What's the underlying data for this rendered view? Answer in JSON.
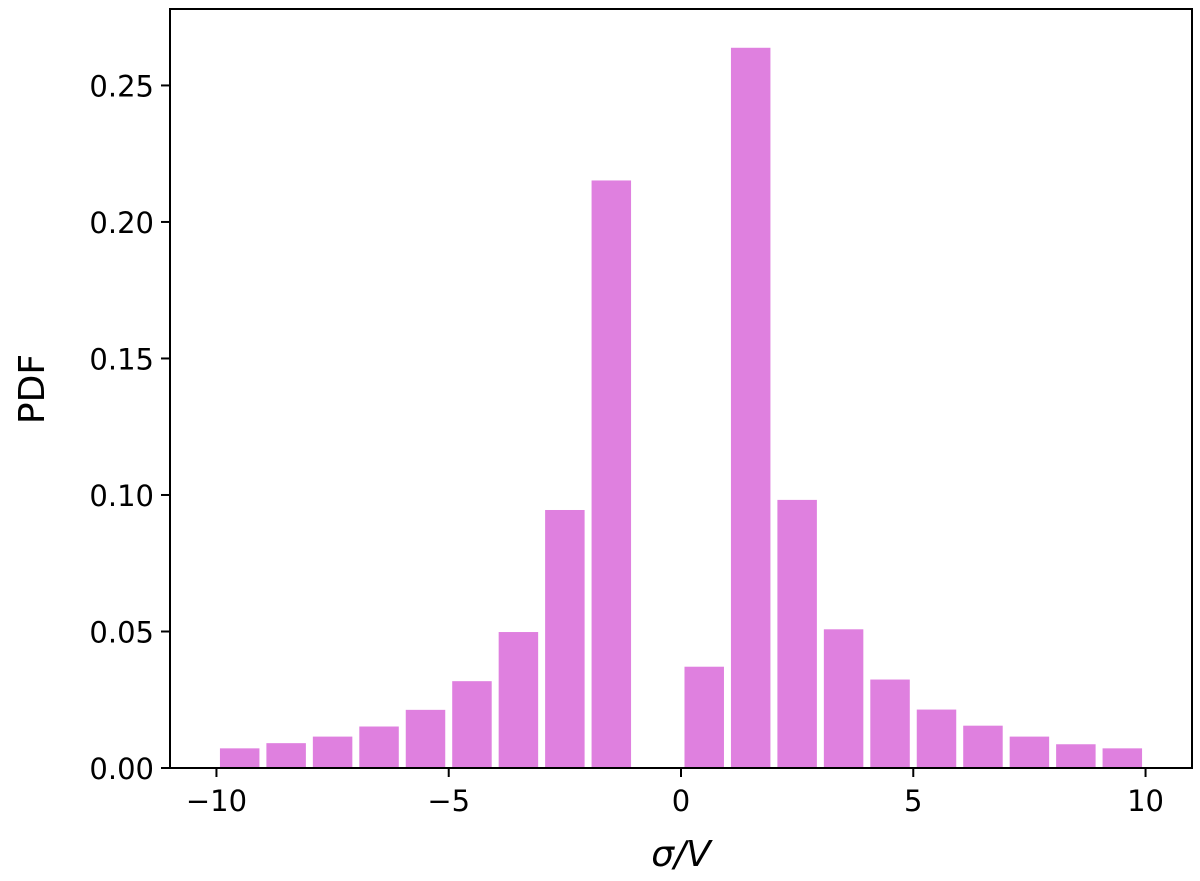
{
  "chart_data": {
    "type": "bar",
    "xlabel": "σ/V",
    "ylabel": "PDF",
    "xlim": [
      -11,
      11
    ],
    "ylim": [
      0,
      0.278
    ],
    "bar_width": 0.85,
    "bar_color": "#df80df",
    "grid": false,
    "x_ticks": [
      -10,
      -5,
      0,
      5,
      10
    ],
    "x_tick_labels": [
      "−10",
      "−5",
      "0",
      "5",
      "10"
    ],
    "y_ticks": [
      0,
      0.05,
      0.1,
      0.15,
      0.2,
      0.25
    ],
    "y_tick_labels": [
      "0.00",
      "0.05",
      "0.10",
      "0.15",
      "0.20",
      "0.25"
    ],
    "x": [
      -9.5,
      -8.5,
      -7.5,
      -6.5,
      -5.5,
      -4.5,
      -3.5,
      -2.5,
      -1.5,
      -0.5,
      0.5,
      1.5,
      2.5,
      3.5,
      4.5,
      5.5,
      6.5,
      7.5,
      8.5,
      9.5
    ],
    "values": [
      0.0072,
      0.0091,
      0.0115,
      0.0152,
      0.0213,
      0.0318,
      0.0498,
      0.0945,
      0.2152,
      0.0,
      0.0371,
      0.2638,
      0.0982,
      0.0508,
      0.0324,
      0.0214,
      0.0155,
      0.0115,
      0.0087,
      0.0072
    ]
  }
}
